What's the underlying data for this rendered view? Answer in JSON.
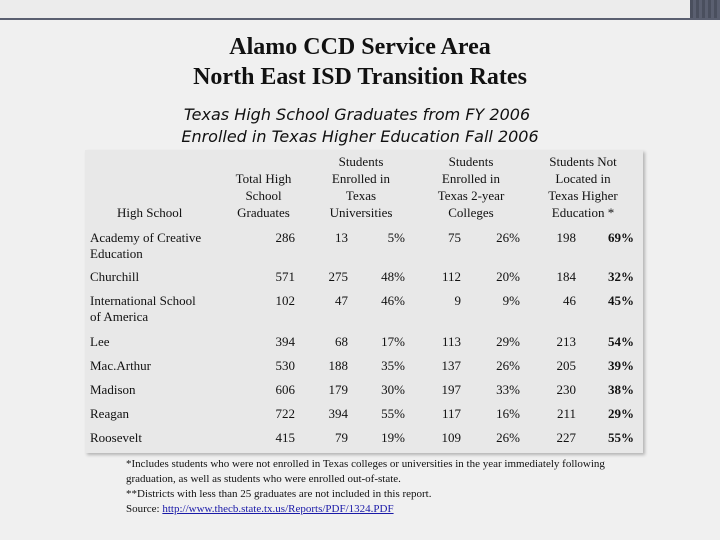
{
  "title": {
    "line1": "Alamo CCD Service Area",
    "line2": "North East ISD Transition Rates"
  },
  "subtitle": {
    "line1": "Texas High School Graduates from FY 2006",
    "line2": "Enrolled in Texas Higher Education Fall 2006"
  },
  "table": {
    "headers": {
      "high_school": "High School",
      "total_graduates": [
        "Total High",
        "School",
        "Graduates"
      ],
      "universities": [
        "Students",
        "Enrolled in",
        "Texas",
        "Universities"
      ],
      "two_year": [
        "Students",
        "Enrolled in",
        "Texas 2-year",
        "Colleges"
      ],
      "not_located": [
        "Students Not",
        "Located in",
        "Texas Higher",
        "Education *"
      ]
    },
    "rows": [
      {
        "name": "Academy of Creative Education",
        "name_lines": [
          "Academy of Creative",
          "Education"
        ],
        "total": "286",
        "univ_n": "13",
        "univ_p": "5%",
        "college_n": "75",
        "college_p": "26%",
        "not_n": "198",
        "not_p": "69%"
      },
      {
        "name": "Churchill",
        "name_lines": [
          "Churchill"
        ],
        "total": "571",
        "univ_n": "275",
        "univ_p": "48%",
        "college_n": "112",
        "college_p": "20%",
        "not_n": "184",
        "not_p": "32%"
      },
      {
        "name": "International School of America",
        "name_lines": [
          "International School",
          "of America"
        ],
        "total": "102",
        "univ_n": "47",
        "univ_p": "46%",
        "college_n": "9",
        "college_p": "9%",
        "not_n": "46",
        "not_p": "45%"
      },
      {
        "name": "Lee",
        "name_lines": [
          "Lee"
        ],
        "total": "394",
        "univ_n": "68",
        "univ_p": "17%",
        "college_n": "113",
        "college_p": "29%",
        "not_n": "213",
        "not_p": "54%"
      },
      {
        "name": "MacArthur",
        "name_lines": [
          "Mac.Arthur"
        ],
        "total": "530",
        "univ_n": "188",
        "univ_p": "35%",
        "college_n": "137",
        "college_p": "26%",
        "not_n": "205",
        "not_p": "39%"
      },
      {
        "name": "Madison",
        "name_lines": [
          "Madison"
        ],
        "total": "606",
        "univ_n": "179",
        "univ_p": "30%",
        "college_n": "197",
        "college_p": "33%",
        "not_n": "230",
        "not_p": "38%"
      },
      {
        "name": "Reagan",
        "name_lines": [
          "Reagan"
        ],
        "total": "722",
        "univ_n": "394",
        "univ_p": "55%",
        "college_n": "117",
        "college_p": "16%",
        "not_n": "211",
        "not_p": "29%"
      },
      {
        "name": "Roosevelt",
        "name_lines": [
          "Roosevelt"
        ],
        "total": "415",
        "univ_n": "79",
        "univ_p": "19%",
        "college_n": "109",
        "college_p": "26%",
        "not_n": "227",
        "not_p": "55%"
      }
    ]
  },
  "notes": {
    "line1": "*Includes students who were not enrolled in Texas colleges or universities in the year immediately following",
    "line2": "graduation, as well as students who were enrolled out-of-state.",
    "line3": "**Districts with less than 25 graduates are not included in this report.",
    "source_label": "Source: ",
    "source_url": "http://www.thecb.state.tx.us/Reports/PDF/1324.PDF"
  }
}
